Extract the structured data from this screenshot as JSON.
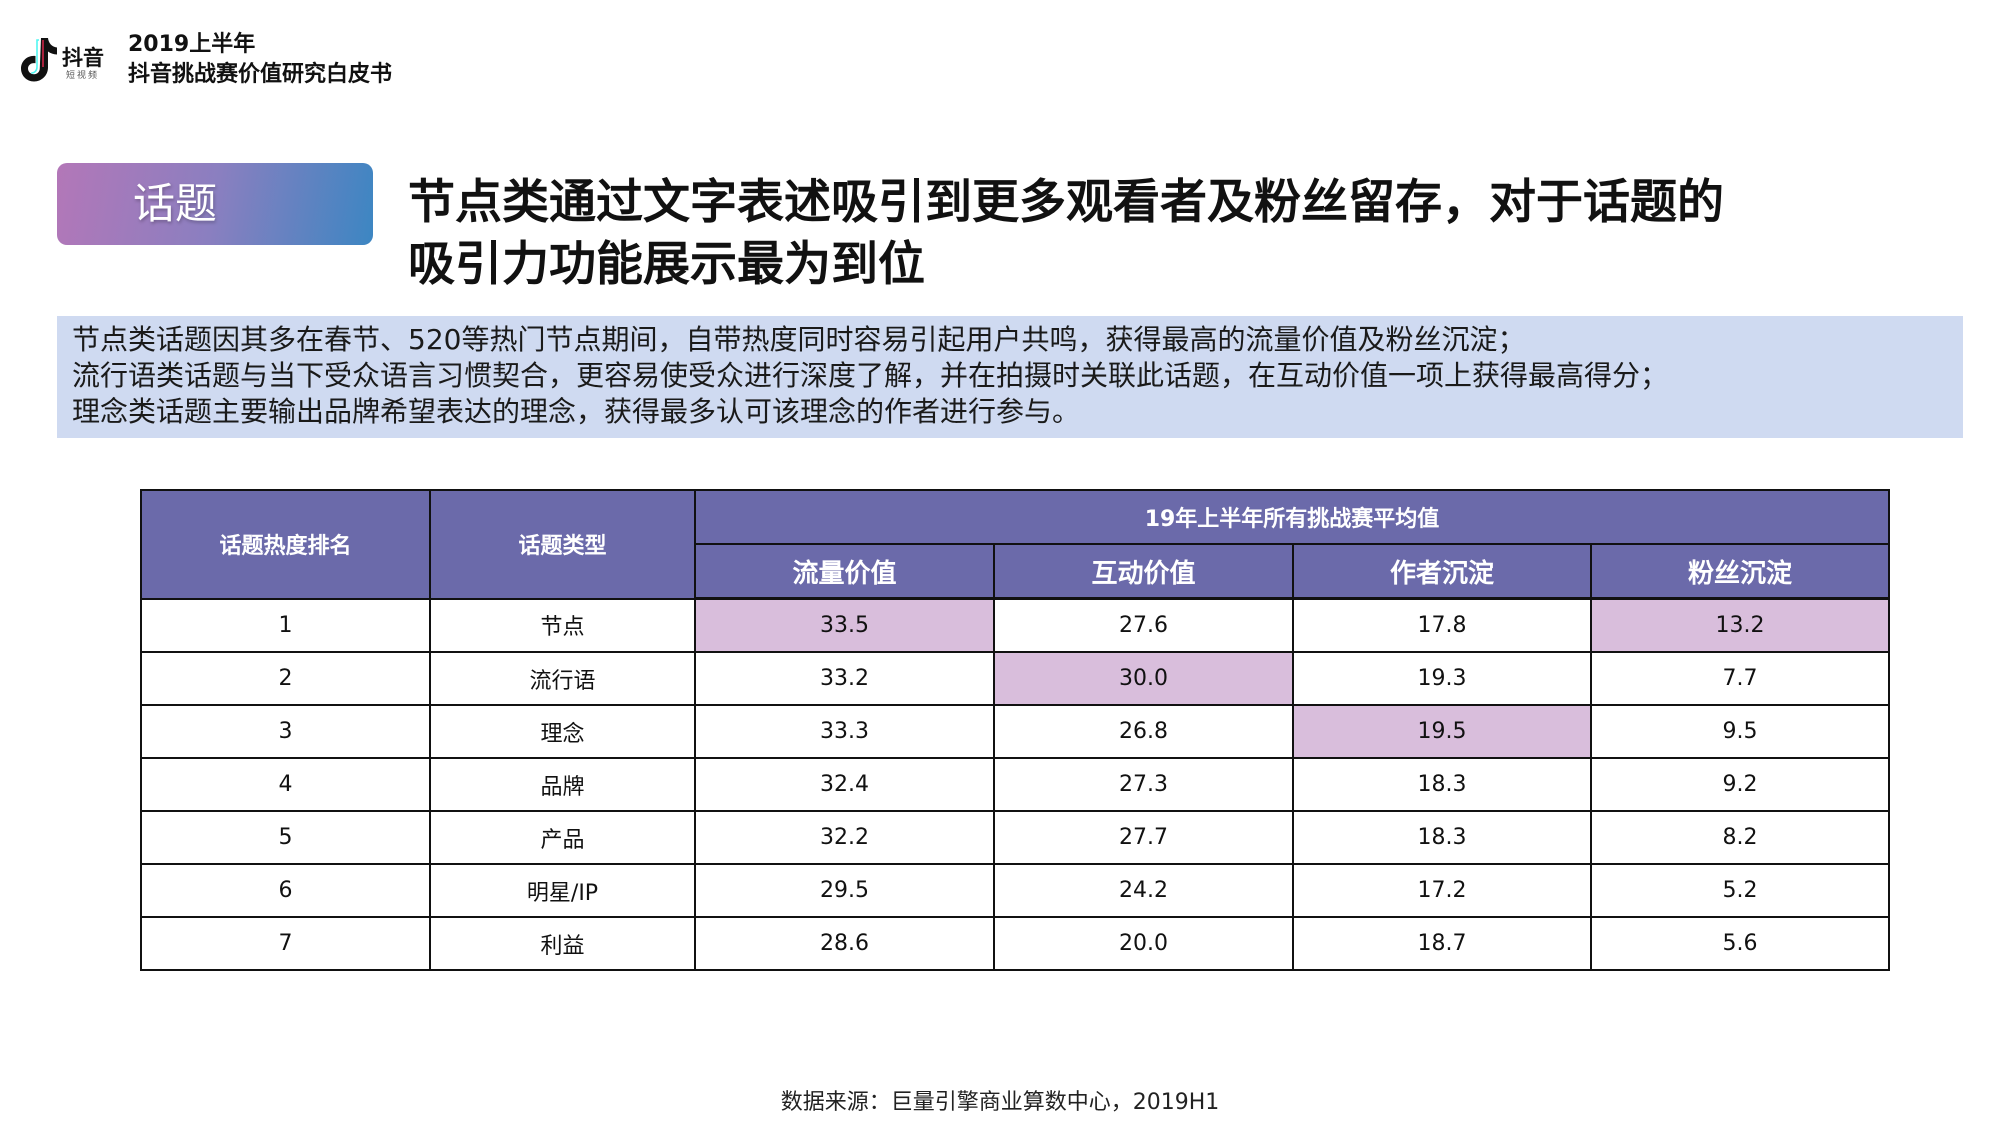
{
  "logo": {
    "brand": "抖音",
    "sub": "短视频"
  },
  "report": {
    "line1": "2019上半年",
    "line2": "抖音挑战赛价值研究白皮书"
  },
  "section_tag": "话题",
  "headline": {
    "line1": "节点类通过文字表述吸引到更多观看者及粉丝留存，对于话题的",
    "line2": "吸引力功能展示最为到位"
  },
  "summary": [
    "节点类话题因其多在春节、520等热门节点期间，自带热度同时容易引起用户共鸣，获得最高的流量价值及粉丝沉淀；",
    "流行语类话题与当下受众语言习惯契合，更容易使受众进行深度了解，并在拍摄时关联此话题，在互动价值一项上获得最高得分；",
    "理念类话题主要输出品牌希望表达的理念，获得最多认可该理念的作者进行参与。"
  ],
  "table": {
    "col_rank": "话题热度排名",
    "col_type": "话题类型",
    "group_header": "19年上半年所有挑战赛平均值",
    "metrics": [
      "流量价值",
      "互动价值",
      "作者沉淀",
      "粉丝沉淀"
    ],
    "highlight_color": "#d9bedc",
    "header_color": "#6b6aaa",
    "rows": [
      {
        "rank": "1",
        "type": "节点",
        "values": [
          "33.5",
          "27.6",
          "17.8",
          "13.2"
        ]
      },
      {
        "rank": "2",
        "type": "流行语",
        "values": [
          "33.2",
          "30.0",
          "19.3",
          "7.7"
        ]
      },
      {
        "rank": "3",
        "type": "理念",
        "values": [
          "33.3",
          "26.8",
          "19.5",
          "9.5"
        ]
      },
      {
        "rank": "4",
        "type": "品牌",
        "values": [
          "32.4",
          "27.3",
          "18.3",
          "9.2"
        ]
      },
      {
        "rank": "5",
        "type": "产品",
        "values": [
          "32.2",
          "27.7",
          "18.3",
          "8.2"
        ]
      },
      {
        "rank": "6",
        "type": "明星/IP",
        "values": [
          "29.5",
          "24.2",
          "17.2",
          "5.2"
        ]
      },
      {
        "rank": "7",
        "type": "利益",
        "values": [
          "28.6",
          "20.0",
          "18.7",
          "5.6"
        ]
      }
    ]
  },
  "source": "数据来源：巨量引擎商业算数中心，2019H1"
}
